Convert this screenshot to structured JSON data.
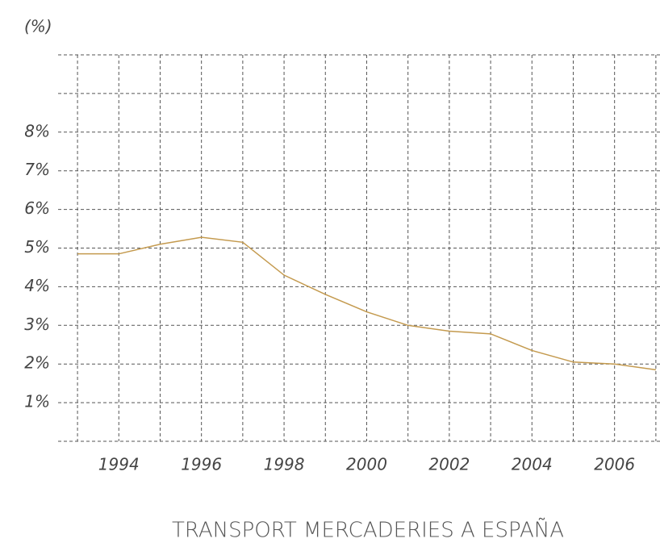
{
  "chart_data": {
    "type": "line",
    "title": "TRANSPORT MERCADERIES A ESPAÑA",
    "ylabel": "(%)",
    "x": [
      1993,
      1994,
      1995,
      1996,
      1997,
      1998,
      1999,
      2000,
      2001,
      2002,
      2003,
      2004,
      2005,
      2006,
      2007
    ],
    "series": [
      {
        "name": "Transport mercaderies",
        "color": "#c49a4e",
        "values": [
          4.85,
          4.85,
          5.1,
          5.28,
          5.15,
          4.3,
          3.8,
          3.35,
          3.0,
          2.85,
          2.78,
          2.35,
          2.05,
          2.0,
          1.85
        ]
      }
    ],
    "xlim": [
      1992.53,
      2007.1
    ],
    "ylim": [
      0,
      10
    ],
    "xticks": [
      1994,
      1996,
      1998,
      2000,
      2002,
      2004,
      2006
    ],
    "xgrid": [
      1993,
      1994,
      1995,
      1996,
      1997,
      1998,
      1999,
      2000,
      2001,
      2002,
      2003,
      2004,
      2005,
      2006,
      2007
    ],
    "yticks": [
      {
        "value": 1,
        "label": "1%"
      },
      {
        "value": 2,
        "label": "2%"
      },
      {
        "value": 3,
        "label": "3%"
      },
      {
        "value": 4,
        "label": "4%"
      },
      {
        "value": 5,
        "label": "5%"
      },
      {
        "value": 6,
        "label": "6%"
      },
      {
        "value": 7,
        "label": "7%"
      },
      {
        "value": 8,
        "label": "8%"
      }
    ],
    "ygrid": [
      0,
      1,
      2,
      3,
      4,
      5,
      6,
      7,
      8,
      9,
      10
    ],
    "grid": true
  }
}
